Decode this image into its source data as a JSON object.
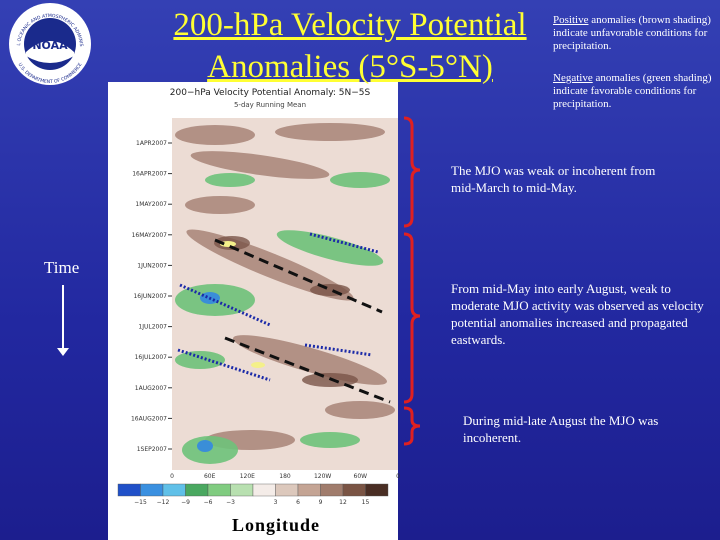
{
  "header": {
    "title": "200-hPa Velocity Potential Anomalies (5°S-5°N)",
    "logo_text": "NOAA",
    "logo_ring_top": "NATIONAL OCEANIC AND ATMOSPHERIC ADMINISTRATION",
    "logo_ring_bottom": "U.S. DEPARTMENT OF COMMERCE"
  },
  "notes": {
    "positive": {
      "keyword": "Positive",
      "text": " anomalies (brown shading) indicate unfavorable conditions for precipitation."
    },
    "negative": {
      "keyword": "Negative",
      "text": " anomalies (green shading) indicate favorable conditions for precipitation."
    }
  },
  "annotations": [
    "The MJO was weak or incoherent from mid-March to mid-May.",
    "From mid-May into early August, weak to moderate MJO activity was observed as velocity potential anomalies increased and propagated eastwards.",
    "During mid-late August the MJO was incoherent."
  ],
  "axis_labels": {
    "time": "Time",
    "longitude": "Longitude"
  },
  "figure": {
    "title": "200−hPa Velocity Potential Anomaly: 5N−5S",
    "subtitle": "5-day Running Mean",
    "dates": [
      "1APR2007",
      "16APR2007",
      "1MAY2007",
      "16MAY2007",
      "1JUN2007",
      "16JUN2007",
      "1JUL2007",
      "16JUL2007",
      "1AUG2007",
      "16AUG2007",
      "1SEP2007"
    ],
    "longitudes": [
      "0",
      "60E",
      "120E",
      "180",
      "120W",
      "60W",
      "0"
    ],
    "colorbar": [
      "−15",
      "−12",
      "−9",
      "−6",
      "−3",
      "3",
      "6",
      "9",
      "12",
      "15"
    ]
  }
}
